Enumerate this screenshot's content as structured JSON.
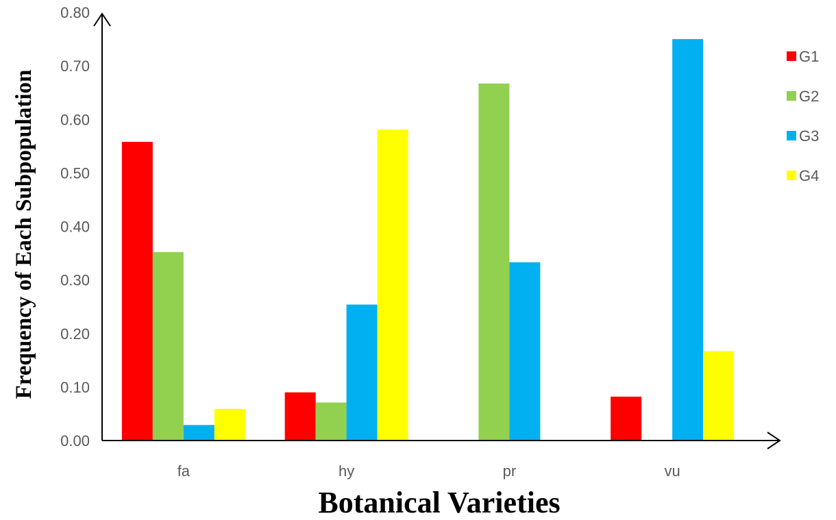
{
  "chart_data": {
    "type": "bar",
    "title": "",
    "xlabel": "Botanical Varieties",
    "ylabel": "Frequency of Each Subpopulation",
    "categories": [
      "fa",
      "hy",
      "pr",
      "vu"
    ],
    "ylim": [
      0,
      0.8
    ],
    "yticks": [
      "0.00",
      "0.10",
      "0.20",
      "0.30",
      "0.40",
      "0.50",
      "0.60",
      "0.70",
      "0.80"
    ],
    "grid": false,
    "legend_position": "right",
    "series": [
      {
        "name": "G1",
        "color": "#ff0000",
        "values": [
          0.558,
          0.09,
          0.0,
          0.082
        ]
      },
      {
        "name": "G2",
        "color": "#92d050",
        "values": [
          0.352,
          0.071,
          0.667,
          0.0
        ]
      },
      {
        "name": "G3",
        "color": "#00b0f0",
        "values": [
          0.029,
          0.254,
          0.333,
          0.75
        ]
      },
      {
        "name": "G4",
        "color": "#ffff00",
        "values": [
          0.059,
          0.581,
          0.0,
          0.167
        ]
      }
    ]
  }
}
